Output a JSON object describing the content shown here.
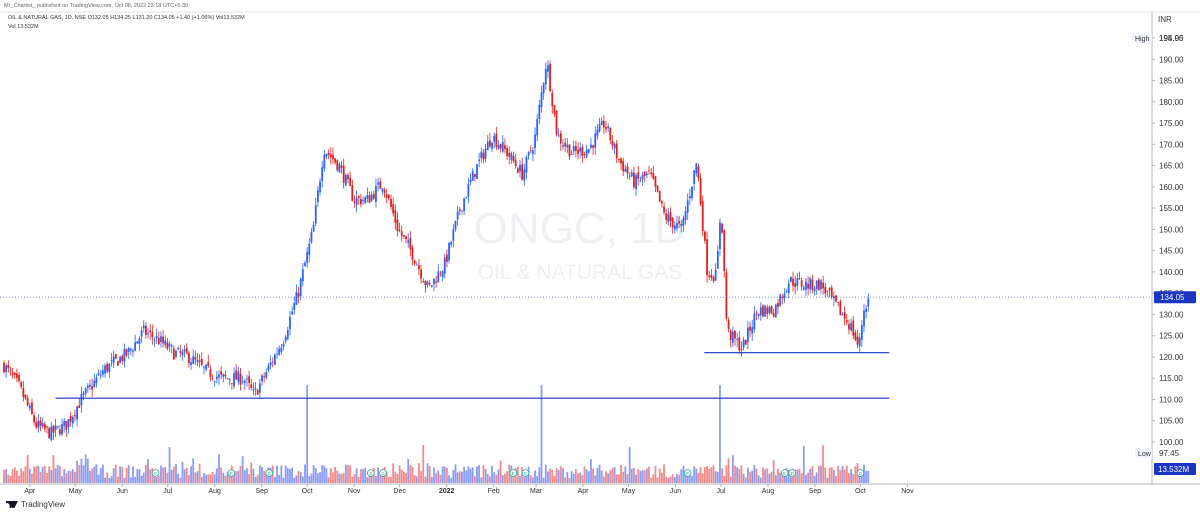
{
  "header": {
    "publisher": "Mr_Chartist_ published on TradingView.com, Oct 08, 2022 23:18 UTC+5:30",
    "ohlc": "OIL & NATURAL GAS, 1D, NSE  O132.05  H134.25  L131.20  C134.05  +1.40 (+1.06%)  Vol13.532M",
    "volume": "Vol  13.532M"
  },
  "watermark": {
    "symbol": "ONGC, 1D",
    "name": "OIL & NATURAL GAS"
  },
  "axis": {
    "currency": "INR",
    "high_label": "High",
    "high_value": "194.95",
    "low_label": "Low",
    "low_value": "97.45",
    "last_price": "134.05",
    "volume_badge": "13.532M"
  },
  "footer": {
    "brand": "TradingView"
  },
  "colors": {
    "up": "#2962ff",
    "down": "#e0201e",
    "vol_up": "#8b9cf5",
    "vol_down": "#f28b8b",
    "line": "#1a35c4",
    "badge": "#1a35c4"
  },
  "chart_data": {
    "type": "candlestick",
    "symbol": "ONGC",
    "timeframe": "1D",
    "ylim": [
      95,
      197
    ],
    "y_ticks": [
      100,
      105,
      110,
      115,
      120,
      125,
      130,
      135,
      140,
      145,
      150,
      155,
      160,
      165,
      170,
      175,
      180,
      185,
      190,
      195
    ],
    "x_ticks": [
      "Apr",
      "May",
      "Jun",
      "Jul",
      "Aug",
      "Sep",
      "Oct",
      "Nov",
      "Dec",
      "2022",
      "Feb",
      "Mar",
      "Apr",
      "May",
      "Jun",
      "Jul",
      "Aug",
      "Sep",
      "Oct",
      "Nov"
    ],
    "close_path": [
      [
        "2021-03-15",
        118
      ],
      [
        "2021-03-25",
        113
      ],
      [
        "2021-04-05",
        104
      ],
      [
        "2021-04-15",
        102
      ],
      [
        "2021-04-25",
        104
      ],
      [
        "2021-05-05",
        110
      ],
      [
        "2021-05-20",
        117
      ],
      [
        "2021-06-05",
        121
      ],
      [
        "2021-06-15",
        126
      ],
      [
        "2021-06-25",
        124
      ],
      [
        "2021-07-05",
        121
      ],
      [
        "2021-07-15",
        120
      ],
      [
        "2021-07-25",
        117
      ],
      [
        "2021-08-05",
        115
      ],
      [
        "2021-08-20",
        115
      ],
      [
        "2021-08-27",
        111
      ],
      [
        "2021-09-05",
        117
      ],
      [
        "2021-09-15",
        124
      ],
      [
        "2021-09-25",
        135
      ],
      [
        "2021-10-05",
        150
      ],
      [
        "2021-10-12",
        169
      ],
      [
        "2021-10-22",
        165
      ],
      [
        "2021-11-01",
        157
      ],
      [
        "2021-11-10",
        157
      ],
      [
        "2021-11-20",
        161
      ],
      [
        "2021-11-30",
        150
      ],
      [
        "2021-12-10",
        144
      ],
      [
        "2021-12-20",
        136
      ],
      [
        "2021-12-31",
        142
      ],
      [
        "2022-01-10",
        155
      ],
      [
        "2022-01-20",
        164
      ],
      [
        "2022-01-31",
        172
      ],
      [
        "2022-02-10",
        168
      ],
      [
        "2022-02-20",
        163
      ],
      [
        "2022-02-28",
        171
      ],
      [
        "2022-03-08",
        190
      ],
      [
        "2022-03-15",
        172
      ],
      [
        "2022-03-25",
        168
      ],
      [
        "2022-04-05",
        169
      ],
      [
        "2022-04-15",
        175
      ],
      [
        "2022-04-25",
        166
      ],
      [
        "2022-05-05",
        161
      ],
      [
        "2022-05-15",
        163
      ],
      [
        "2022-05-25",
        153
      ],
      [
        "2022-06-05",
        150
      ],
      [
        "2022-06-15",
        166
      ],
      [
        "2022-06-22",
        140
      ],
      [
        "2022-06-28",
        139
      ],
      [
        "2022-07-01",
        156
      ],
      [
        "2022-07-05",
        126
      ],
      [
        "2022-07-15",
        122
      ],
      [
        "2022-07-25",
        131
      ],
      [
        "2022-08-05",
        131
      ],
      [
        "2022-08-15",
        138
      ],
      [
        "2022-08-25",
        137
      ],
      [
        "2022-09-05",
        137
      ],
      [
        "2022-09-15",
        132
      ],
      [
        "2022-09-25",
        127
      ],
      [
        "2022-09-30",
        122
      ],
      [
        "2022-10-03",
        131
      ],
      [
        "2022-10-07",
        134.05
      ]
    ],
    "last_bar": {
      "open": 132.05,
      "high": 134.25,
      "low": 131.2,
      "close": 134.05,
      "change": 1.4,
      "change_pct": 1.06,
      "volume": "13.532M"
    },
    "high": 194.95,
    "low": 97.45,
    "annotations": [
      {
        "type": "horizontal_line",
        "price": 110.3,
        "from": "2021-04-18",
        "to": "2022-10-20"
      },
      {
        "type": "horizontal_line",
        "price": 121.0,
        "from": "2022-06-20",
        "to": "2022-10-20"
      }
    ],
    "volume_spikes": [
      {
        "date": "2021-10-01",
        "direction": "up"
      },
      {
        "date": "2022-03-04",
        "direction": "up"
      },
      {
        "date": "2022-06-30",
        "direction": "up"
      }
    ],
    "event_markers": [
      {
        "date": "2021-06-23",
        "label": "E"
      },
      {
        "date": "2021-08-12",
        "label": "E"
      },
      {
        "date": "2021-09-06",
        "label": "D"
      },
      {
        "date": "2021-11-12",
        "label": "E"
      },
      {
        "date": "2021-11-20",
        "label": "D"
      },
      {
        "date": "2022-02-14",
        "label": "E"
      },
      {
        "date": "2022-02-22",
        "label": "D"
      },
      {
        "date": "2022-06-09",
        "label": "E"
      },
      {
        "date": "2022-08-12",
        "label": "E"
      },
      {
        "date": "2022-08-17",
        "label": "D"
      },
      {
        "date": "2022-10-01",
        "label": "D"
      }
    ]
  }
}
